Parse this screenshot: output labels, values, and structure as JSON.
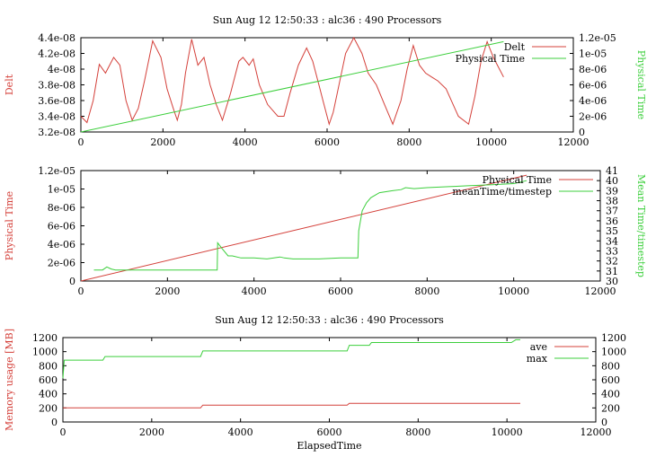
{
  "colors": {
    "red": "#d4403a",
    "green": "#3ccf3c",
    "black": "#000000"
  },
  "chart_data": [
    {
      "type": "line",
      "title": "Sun Aug 12 12:50:33 : alc36 : 490 Processors",
      "xlabel": "",
      "ylabel_left": "Delt",
      "ylabel_right": "Physical Time",
      "xlim": [
        0,
        12000
      ],
      "ylim_left": [
        3.2e-08,
        4.4e-08
      ],
      "ylim_right": [
        0,
        1.2e-05
      ],
      "x_ticks": [
        "0",
        "2000",
        "4000",
        "6000",
        "8000",
        "10000",
        "12000"
      ],
      "y_ticks_left": [
        "3.2e-08",
        "3.4e-08",
        "3.6e-08",
        "3.8e-08",
        "4e-08",
        "4.2e-08",
        "4.4e-08"
      ],
      "y_ticks_right": [
        "0",
        "2e-06",
        "4e-06",
        "6e-06",
        "8e-06",
        "1e-05",
        "1.2e-05"
      ],
      "legend": "top-right",
      "series": [
        {
          "name": "Delt",
          "axis": "left",
          "color": "#d4403a",
          "x": [
            0,
            150,
            300,
            450,
            600,
            800,
            950,
            1100,
            1250,
            1400,
            1550,
            1750,
            1950,
            2100,
            2250,
            2350,
            2450,
            2550,
            2700,
            2850,
            3000,
            3150,
            3300,
            3450,
            3650,
            3850,
            3950,
            4100,
            4200,
            4350,
            4550,
            4800,
            4950,
            5100,
            5300,
            5500,
            5650,
            5800,
            5900,
            6050,
            6150,
            6250,
            6450,
            6650,
            6850,
            7000,
            7200,
            7400,
            7600,
            7800,
            7950,
            8100,
            8250,
            8400,
            8550,
            8700,
            8900,
            9200,
            9450,
            9600,
            9750,
            9900,
            10050,
            10200,
            10300
          ],
          "values": [
            3.4e-08,
            3.32e-08,
            3.6e-08,
            4.06e-08,
            3.95e-08,
            4.15e-08,
            4.05e-08,
            3.6e-08,
            3.35e-08,
            3.5e-08,
            3.85e-08,
            4.36e-08,
            4.15e-08,
            3.75e-08,
            3.5e-08,
            3.35e-08,
            3.55e-08,
            3.95e-08,
            4.38e-08,
            4.05e-08,
            4.15e-08,
            3.8e-08,
            3.55e-08,
            3.35e-08,
            3.7e-08,
            4.1e-08,
            4.15e-08,
            4.05e-08,
            4.13e-08,
            3.8e-08,
            3.55e-08,
            3.4e-08,
            3.4e-08,
            3.7e-08,
            4.05e-08,
            4.27e-08,
            4.1e-08,
            3.8e-08,
            3.6e-08,
            3.3e-08,
            3.45e-08,
            3.7e-08,
            4.2e-08,
            4.4e-08,
            4.2e-08,
            3.95e-08,
            3.8e-08,
            3.55e-08,
            3.3e-08,
            3.6e-08,
            4e-08,
            4.3e-08,
            4.05e-08,
            3.95e-08,
            3.9e-08,
            3.85e-08,
            3.75e-08,
            3.4e-08,
            3.3e-08,
            3.65e-08,
            4.1e-08,
            4.35e-08,
            4.15e-08,
            4e-08,
            3.9e-08
          ]
        },
        {
          "name": "Physical Time",
          "axis": "right",
          "color": "#3ccf3c",
          "x": [
            0,
            10300
          ],
          "values": [
            0,
            1.15e-05
          ]
        }
      ]
    },
    {
      "type": "line",
      "title": "",
      "xlabel": "",
      "ylabel_left": "Physical Time",
      "ylabel_right": "Mean Time/timestep",
      "xlim": [
        0,
        12000
      ],
      "ylim_left": [
        0,
        1.2e-05
      ],
      "ylim_right": [
        30,
        41
      ],
      "x_ticks": [
        "0",
        "2000",
        "4000",
        "6000",
        "8000",
        "10000",
        "12000"
      ],
      "y_ticks_left": [
        "0",
        "2e-06",
        "4e-06",
        "6e-06",
        "8e-06",
        "1e-05",
        "1.2e-05"
      ],
      "y_ticks_right": [
        "30",
        "31",
        "32",
        "33",
        "34",
        "35",
        "36",
        "37",
        "38",
        "39",
        "40",
        "41"
      ],
      "legend": "top-right",
      "series": [
        {
          "name": "Physical Time",
          "axis": "left",
          "color": "#d4403a",
          "x": [
            0,
            10300
          ],
          "values": [
            0,
            1.15e-05
          ]
        },
        {
          "name": "meanTime/timestep",
          "axis": "right",
          "color": "#3ccf3c",
          "x": [
            300,
            500,
            600,
            700,
            800,
            1000,
            1500,
            2000,
            2500,
            3000,
            3150,
            3160,
            3250,
            3400,
            3500,
            3700,
            4000,
            4300,
            4600,
            4700,
            4900,
            5500,
            6000,
            6400,
            6420,
            6500,
            6600,
            6700,
            6900,
            7200,
            7400,
            7500,
            7700,
            8000,
            8500,
            9000,
            9500,
            10000,
            10300
          ],
          "values": [
            31.1,
            31.1,
            31.4,
            31.2,
            31.1,
            31.1,
            31.1,
            31.1,
            31.1,
            31.1,
            31.1,
            33.8,
            33.3,
            32.5,
            32.5,
            32.3,
            32.3,
            32.2,
            32.4,
            32.3,
            32.2,
            32.2,
            32.3,
            32.3,
            35.0,
            37.0,
            37.8,
            38.3,
            38.8,
            39.0,
            39.1,
            39.3,
            39.2,
            39.3,
            39.4,
            39.5,
            39.6,
            39.7,
            40.0
          ]
        }
      ]
    },
    {
      "type": "line",
      "title": "Sun Aug 12 12:50:33 : alc36 : 490 Processors",
      "xlabel": "ElapsedTime",
      "ylabel_left": "Memory usage [MB]",
      "ylabel_right": "",
      "xlim": [
        0,
        12000
      ],
      "ylim_left": [
        0,
        1200
      ],
      "ylim_right": [
        0,
        1200
      ],
      "x_ticks": [
        "0",
        "2000",
        "4000",
        "6000",
        "8000",
        "10000",
        "12000"
      ],
      "y_ticks_left": [
        "0",
        "200",
        "400",
        "600",
        "800",
        "1000",
        "1200"
      ],
      "y_ticks_right": [
        "0",
        "200",
        "400",
        "600",
        "800",
        "1000",
        "1200"
      ],
      "legend": "top-right",
      "series": [
        {
          "name": "ave",
          "axis": "left",
          "color": "#d4403a",
          "x": [
            0,
            3100,
            3150,
            6400,
            6450,
            10300
          ],
          "values": [
            200,
            200,
            240,
            240,
            265,
            265
          ]
        },
        {
          "name": "max",
          "axis": "left",
          "color": "#3ccf3c",
          "x": [
            0,
            30,
            100,
            900,
            950,
            3100,
            3150,
            6400,
            6450,
            6900,
            6950,
            10100,
            10200,
            10300
          ],
          "values": [
            620,
            880,
            880,
            880,
            930,
            930,
            1010,
            1010,
            1090,
            1090,
            1130,
            1130,
            1170,
            1170
          ]
        }
      ]
    }
  ]
}
